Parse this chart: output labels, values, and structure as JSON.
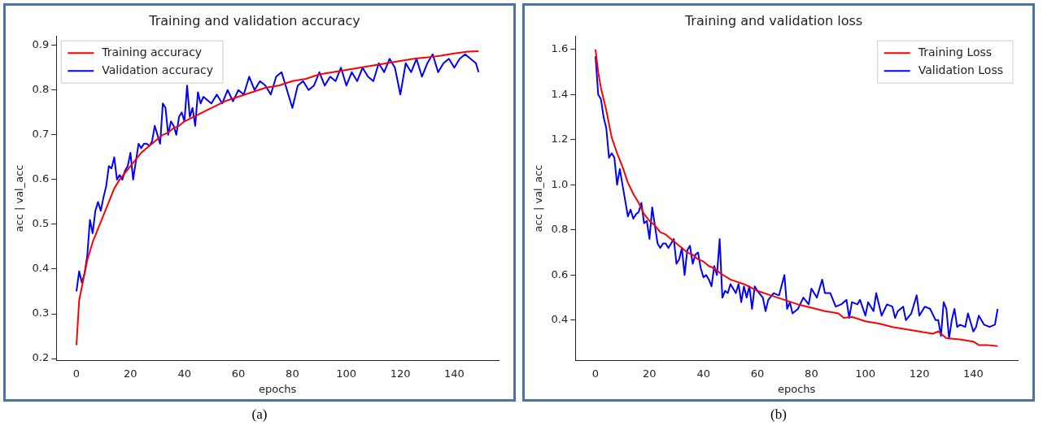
{
  "chart_data": [
    {
      "type": "line",
      "title": "Training and validation accuracy",
      "xlabel": "epochs",
      "ylabel": "acc | val_acc",
      "xlim": [
        -7.45,
        156.45
      ],
      "xticks": [
        0,
        20,
        40,
        60,
        80,
        100,
        120,
        140
      ],
      "ylim": [
        0.195,
        0.921
      ],
      "yticks": [
        0.2,
        0.3,
        0.4,
        0.5,
        0.6,
        0.7,
        0.8,
        0.9
      ],
      "grid": false,
      "legend": "top left",
      "marker": "none",
      "line_style": "solid",
      "annotations": [
        "(a)"
      ],
      "series": [
        {
          "name": "Training accuracy",
          "color": "#ff0000",
          "x": [
            0,
            1,
            2,
            4,
            6,
            8,
            10,
            12,
            14,
            16,
            18,
            20,
            22,
            24,
            26,
            28,
            30,
            32,
            34,
            36,
            38,
            40,
            45,
            50,
            55,
            60,
            65,
            70,
            75,
            80,
            85,
            90,
            95,
            100,
            105,
            110,
            115,
            120,
            125,
            130,
            135,
            140,
            145,
            149
          ],
          "values": [
            0.23,
            0.33,
            0.36,
            0.42,
            0.46,
            0.49,
            0.52,
            0.55,
            0.58,
            0.6,
            0.615,
            0.63,
            0.645,
            0.66,
            0.67,
            0.68,
            0.69,
            0.7,
            0.705,
            0.715,
            0.72,
            0.73,
            0.745,
            0.76,
            0.775,
            0.785,
            0.795,
            0.805,
            0.81,
            0.82,
            0.825,
            0.835,
            0.84,
            0.845,
            0.85,
            0.855,
            0.86,
            0.865,
            0.87,
            0.873,
            0.877,
            0.882,
            0.886,
            0.887
          ]
        },
        {
          "name": "Validation accuracy",
          "color": "#0000ff",
          "x": [
            0,
            1,
            2,
            3,
            4,
            5,
            6,
            7,
            8,
            9,
            10,
            11,
            12,
            13,
            14,
            15,
            16,
            17,
            18,
            19,
            20,
            21,
            22,
            23,
            24,
            25,
            26,
            27,
            28,
            29,
            30,
            31,
            32,
            33,
            34,
            35,
            36,
            37,
            38,
            39,
            40,
            41,
            42,
            43,
            44,
            45,
            46,
            47,
            48,
            50,
            52,
            54,
            56,
            58,
            60,
            62,
            64,
            66,
            68,
            70,
            72,
            74,
            76,
            78,
            80,
            82,
            84,
            86,
            88,
            90,
            92,
            94,
            96,
            98,
            100,
            102,
            104,
            106,
            108,
            110,
            112,
            114,
            116,
            118,
            120,
            122,
            124,
            126,
            128,
            130,
            132,
            134,
            136,
            138,
            140,
            142,
            144,
            146,
            148,
            149
          ],
          "values": [
            0.35,
            0.395,
            0.37,
            0.39,
            0.43,
            0.51,
            0.48,
            0.53,
            0.55,
            0.53,
            0.56,
            0.585,
            0.63,
            0.625,
            0.65,
            0.6,
            0.61,
            0.6,
            0.62,
            0.63,
            0.66,
            0.6,
            0.64,
            0.68,
            0.67,
            0.68,
            0.68,
            0.675,
            0.685,
            0.72,
            0.7,
            0.68,
            0.77,
            0.76,
            0.7,
            0.73,
            0.72,
            0.7,
            0.74,
            0.75,
            0.73,
            0.81,
            0.74,
            0.76,
            0.72,
            0.795,
            0.77,
            0.785,
            0.78,
            0.77,
            0.79,
            0.77,
            0.8,
            0.775,
            0.8,
            0.79,
            0.83,
            0.8,
            0.82,
            0.81,
            0.79,
            0.83,
            0.84,
            0.8,
            0.76,
            0.81,
            0.82,
            0.8,
            0.81,
            0.84,
            0.81,
            0.83,
            0.82,
            0.85,
            0.81,
            0.84,
            0.82,
            0.85,
            0.83,
            0.82,
            0.86,
            0.84,
            0.87,
            0.85,
            0.79,
            0.86,
            0.84,
            0.87,
            0.83,
            0.86,
            0.88,
            0.84,
            0.86,
            0.87,
            0.85,
            0.87,
            0.88,
            0.87,
            0.86,
            0.84
          ]
        }
      ]
    },
    {
      "type": "line",
      "title": "Training and validation loss",
      "xlabel": "epochs",
      "ylabel": "acc | val_acc",
      "xlim": [
        -7.45,
        156.45
      ],
      "xticks": [
        0,
        20,
        40,
        60,
        80,
        100,
        120,
        140
      ],
      "ylim": [
        0.22,
        1.66
      ],
      "yticks": [
        0.4,
        0.6,
        0.8,
        {
          "value": 1.0,
          "label": "1.0"
        },
        1.2,
        1.4,
        1.6
      ],
      "grid": false,
      "legend": "top right",
      "marker": "none",
      "line_style": "solid",
      "annotations": [
        "(b)"
      ],
      "series": [
        {
          "name": "Training Loss",
          "color": "#ff0000",
          "x": [
            0,
            1,
            2,
            3,
            4,
            5,
            6,
            8,
            10,
            12,
            14,
            16,
            18,
            20,
            22,
            24,
            26,
            28,
            30,
            32,
            34,
            36,
            38,
            40,
            42,
            44,
            46,
            48,
            50,
            55,
            60,
            65,
            70,
            75,
            80,
            85,
            90,
            92,
            95,
            100,
            105,
            110,
            115,
            120,
            125,
            127,
            130,
            135,
            140,
            142,
            145,
            149
          ],
          "values": [
            1.6,
            1.5,
            1.43,
            1.38,
            1.33,
            1.27,
            1.21,
            1.14,
            1.08,
            1.01,
            0.96,
            0.92,
            0.87,
            0.84,
            0.82,
            0.79,
            0.78,
            0.76,
            0.74,
            0.72,
            0.7,
            0.69,
            0.67,
            0.66,
            0.64,
            0.63,
            0.61,
            0.595,
            0.58,
            0.56,
            0.53,
            0.51,
            0.49,
            0.47,
            0.455,
            0.44,
            0.43,
            0.41,
            0.415,
            0.395,
            0.385,
            0.37,
            0.36,
            0.35,
            0.34,
            0.35,
            0.32,
            0.315,
            0.305,
            0.29,
            0.29,
            0.285
          ]
        },
        {
          "name": "Validation Loss",
          "color": "#0000ff",
          "x": [
            0,
            1,
            2,
            3,
            4,
            5,
            6,
            7,
            8,
            9,
            10,
            11,
            12,
            13,
            14,
            15,
            16,
            17,
            18,
            19,
            20,
            21,
            22,
            23,
            24,
            25,
            26,
            27,
            28,
            29,
            30,
            31,
            32,
            33,
            34,
            35,
            36,
            37,
            38,
            39,
            40,
            41,
            42,
            43,
            44,
            45,
            46,
            47,
            48,
            49,
            50,
            52,
            53,
            54,
            55,
            56,
            57,
            58,
            59,
            60,
            62,
            63,
            64,
            66,
            68,
            70,
            71,
            72,
            73,
            75,
            77,
            79,
            80,
            82,
            84,
            85,
            87,
            89,
            91,
            93,
            94,
            95,
            97,
            98,
            100,
            101,
            103,
            104,
            106,
            108,
            110,
            111,
            112,
            114,
            115,
            117,
            119,
            120,
            122,
            124,
            126,
            127,
            128,
            129,
            130,
            131,
            132,
            133,
            134,
            135,
            137,
            138,
            140,
            141,
            142,
            144,
            146,
            148,
            149
          ],
          "values": [
            1.57,
            1.4,
            1.38,
            1.3,
            1.25,
            1.12,
            1.14,
            1.12,
            1.0,
            1.07,
            1.0,
            0.93,
            0.86,
            0.89,
            0.85,
            0.87,
            0.88,
            0.92,
            0.83,
            0.84,
            0.76,
            0.9,
            0.82,
            0.74,
            0.72,
            0.74,
            0.74,
            0.72,
            0.74,
            0.76,
            0.65,
            0.67,
            0.72,
            0.6,
            0.71,
            0.73,
            0.65,
            0.69,
            0.7,
            0.63,
            0.59,
            0.6,
            0.58,
            0.55,
            0.64,
            0.6,
            0.76,
            0.5,
            0.53,
            0.52,
            0.56,
            0.52,
            0.56,
            0.48,
            0.55,
            0.5,
            0.55,
            0.45,
            0.55,
            0.53,
            0.5,
            0.44,
            0.49,
            0.52,
            0.51,
            0.6,
            0.45,
            0.48,
            0.43,
            0.45,
            0.5,
            0.47,
            0.54,
            0.5,
            0.58,
            0.52,
            0.52,
            0.46,
            0.47,
            0.49,
            0.41,
            0.48,
            0.47,
            0.49,
            0.42,
            0.48,
            0.44,
            0.52,
            0.42,
            0.47,
            0.46,
            0.41,
            0.44,
            0.46,
            0.4,
            0.43,
            0.51,
            0.42,
            0.46,
            0.45,
            0.4,
            0.4,
            0.33,
            0.48,
            0.45,
            0.32,
            0.4,
            0.45,
            0.37,
            0.38,
            0.37,
            0.43,
            0.35,
            0.37,
            0.42,
            0.38,
            0.37,
            0.38,
            0.45
          ]
        }
      ]
    }
  ]
}
